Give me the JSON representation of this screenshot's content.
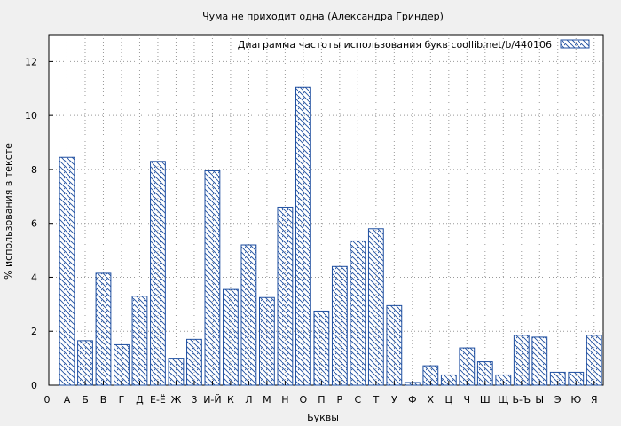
{
  "chart_data": {
    "type": "bar",
    "title": "Чума не приходит одна (Александра Гриндер)",
    "xlabel": "Буквы",
    "ylabel": "% использования в тексте",
    "legend": {
      "label": "Диаграмма частоты использования букв  coollib.net/b/440106",
      "placement": "top-right"
    },
    "ylim": [
      0,
      13
    ],
    "yticks": [
      0,
      2,
      4,
      6,
      8,
      10,
      12
    ],
    "x_start_label": "0",
    "grid": true,
    "colors": {
      "bar_stroke": "#1f4fa0",
      "background": "#f0f0f0",
      "plot_bg": "#ffffff",
      "grid": "#999999"
    },
    "categories": [
      "А",
      "Б",
      "В",
      "Г",
      "Д",
      "Е-Ё",
      "Ж",
      "З",
      "И-Й",
      "К",
      "Л",
      "М",
      "Н",
      "О",
      "П",
      "Р",
      "С",
      "Т",
      "У",
      "Ф",
      "Х",
      "Ц",
      "Ч",
      "Ш",
      "Щ",
      "Ь-Ъ",
      "Ы",
      "Э",
      "Ю",
      "Я"
    ],
    "values": [
      8.45,
      1.65,
      4.15,
      1.5,
      3.3,
      8.3,
      1.0,
      1.7,
      7.95,
      3.55,
      5.2,
      3.25,
      6.6,
      11.05,
      2.75,
      4.4,
      5.35,
      5.8,
      2.95,
      0.1,
      0.72,
      0.38,
      1.38,
      0.87,
      0.38,
      1.85,
      1.78,
      0.48,
      0.48,
      1.85
    ]
  }
}
